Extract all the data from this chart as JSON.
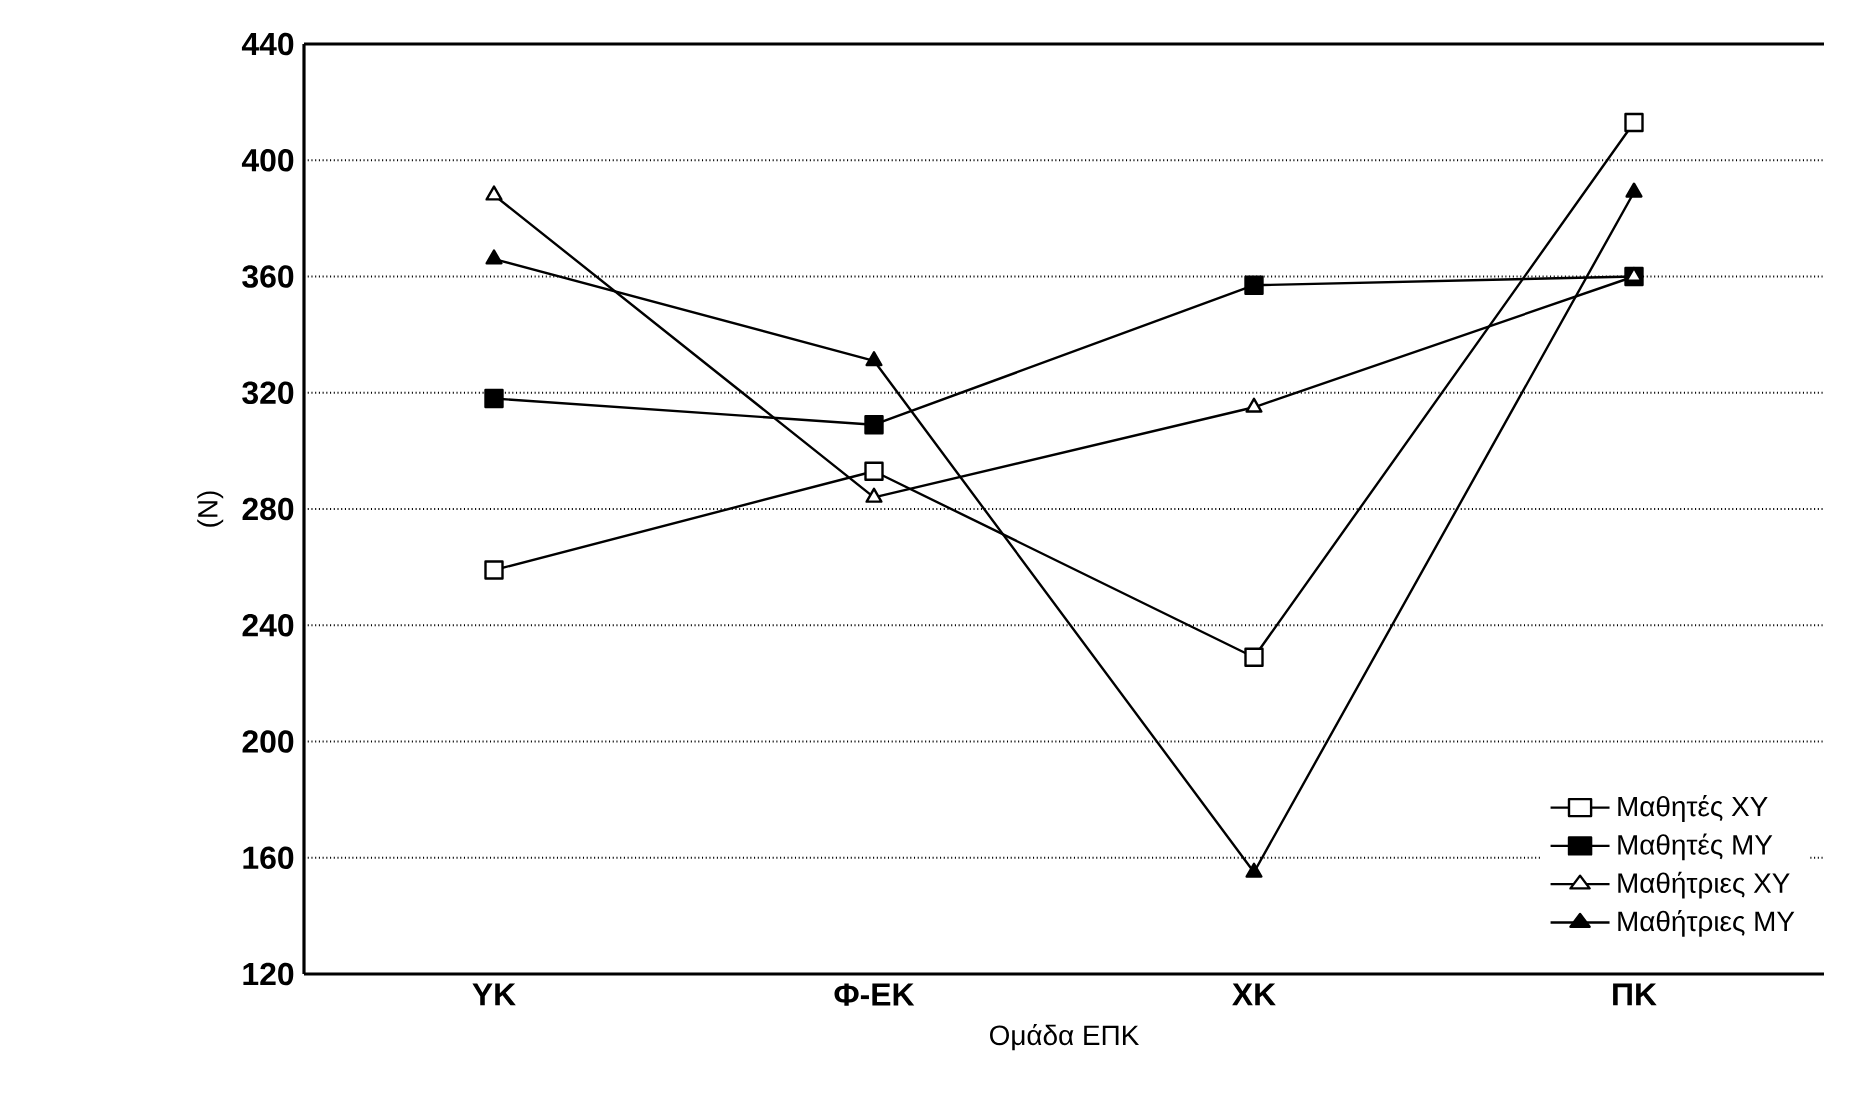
{
  "chart_data": {
    "type": "line",
    "xlabel": "Ομάδα ΕΠΚ",
    "ylabel": "(N)",
    "categories": [
      "ΥΚ",
      "Φ-ΕΚ",
      "ΧΚ",
      "ΠΚ"
    ],
    "ylim": [
      120,
      440
    ],
    "yticks": [
      120,
      160,
      200,
      240,
      280,
      320,
      360,
      400,
      440
    ],
    "grid": "y",
    "legend": "bottom right",
    "line_style": "solid",
    "series": [
      {
        "name": "Μαθητές ΧΥ",
        "color": "#000000",
        "marker": "square-open",
        "values": [
          259,
          293,
          229,
          413
        ]
      },
      {
        "name": "Μαθητές ΜΥ",
        "color": "#000000",
        "marker": "square",
        "values": [
          318,
          309,
          357,
          360
        ]
      },
      {
        "name": "Μαθήτριες ΧΥ",
        "color": "#000000",
        "marker": "triangle-open",
        "values": [
          388,
          284,
          315,
          360
        ]
      },
      {
        "name": "Μαθήτριες ΜΥ",
        "color": "#000000",
        "marker": "triangle",
        "values": [
          366,
          331,
          155,
          389
        ]
      }
    ]
  }
}
